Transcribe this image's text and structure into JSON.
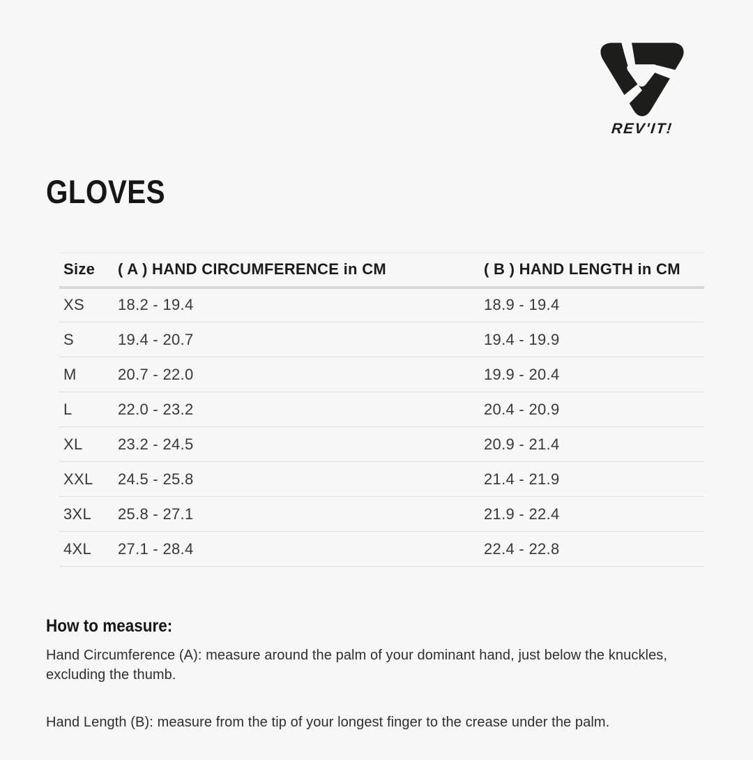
{
  "brand": {
    "name": "REV'IT!",
    "logo_icon": "revit-pinwheel-shield-icon"
  },
  "page": {
    "title": "GLOVES"
  },
  "size_table": {
    "columns": [
      "Size",
      "( A ) HAND CIRCUMFERENCE in CM",
      "( B ) HAND LENGTH in CM"
    ],
    "rows": [
      [
        "XS",
        "18.2 - 19.4",
        "18.9 - 19.4"
      ],
      [
        "S",
        "19.4 - 20.7",
        "19.4 - 19.9"
      ],
      [
        "M",
        "20.7 - 22.0",
        "19.9 - 20.4"
      ],
      [
        "L",
        "22.0 - 23.2",
        "20.4 - 20.9"
      ],
      [
        "XL",
        "23.2 - 24.5",
        "20.9 - 21.4"
      ],
      [
        "XXL",
        "24.5 - 25.8",
        "21.4 - 21.9"
      ],
      [
        "3XL",
        "25.8 - 27.1",
        "21.9 - 22.4"
      ],
      [
        "4XL",
        "27.1 - 28.4",
        "22.4 - 22.8"
      ]
    ]
  },
  "how_to_measure": {
    "heading": "How to measure:",
    "paragraphs": [
      {
        "lines": [
          "Hand Circumference (A): measure around the palm of your dominant hand, just below the knuckles,",
          "excluding the thumb."
        ]
      },
      {
        "lines": [
          "Hand Length (B): measure from the tip of your longest finger to the crease under the palm."
        ]
      }
    ]
  },
  "colors": {
    "background": "#f7f7f7",
    "text_primary": "#1b1b1b",
    "text_secondary": "#383838",
    "row_divider": "#dedede",
    "header_underline": "#d8d8d8",
    "logo_black": "#1d1d1b"
  }
}
